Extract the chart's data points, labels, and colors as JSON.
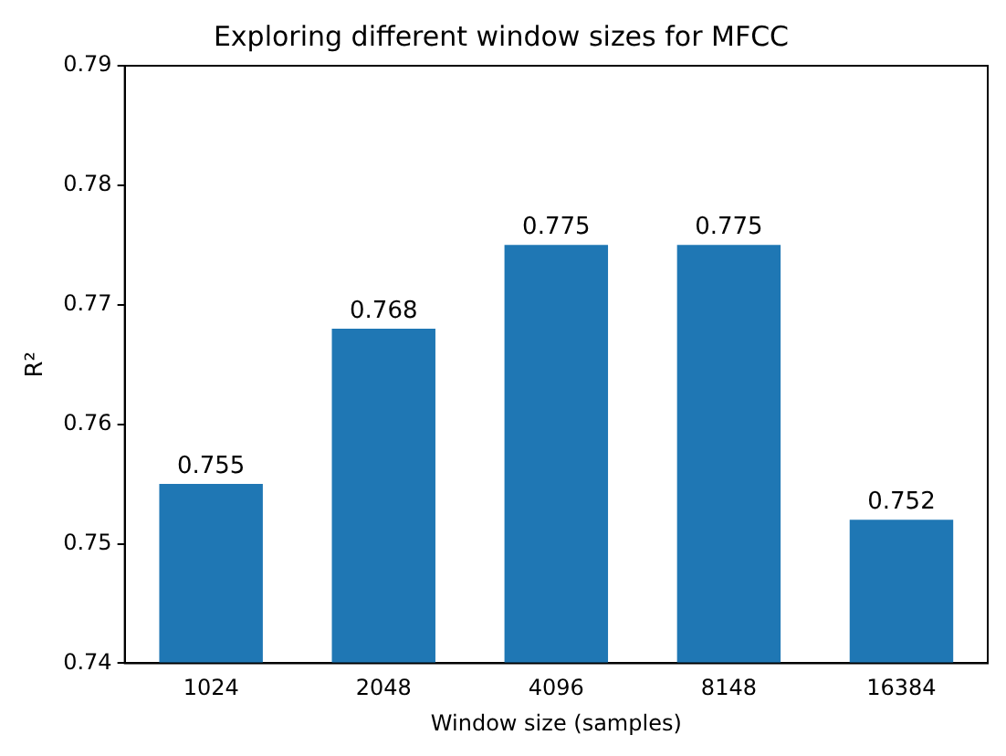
{
  "chart_data": {
    "type": "bar",
    "title": "Exploring different window sizes for MFCC",
    "xlabel": "Window size (samples)",
    "ylabel": "R²",
    "categories": [
      "1024",
      "2048",
      "4096",
      "8148",
      "16384"
    ],
    "values": [
      0.755,
      0.768,
      0.775,
      0.775,
      0.752
    ],
    "color": "#1f77b4",
    "ylim": [
      0.74,
      0.79
    ],
    "yticks": [
      0.74,
      0.75,
      0.76,
      0.77,
      0.78,
      0.79
    ],
    "grid": false,
    "legend": false,
    "data_labels": true
  }
}
